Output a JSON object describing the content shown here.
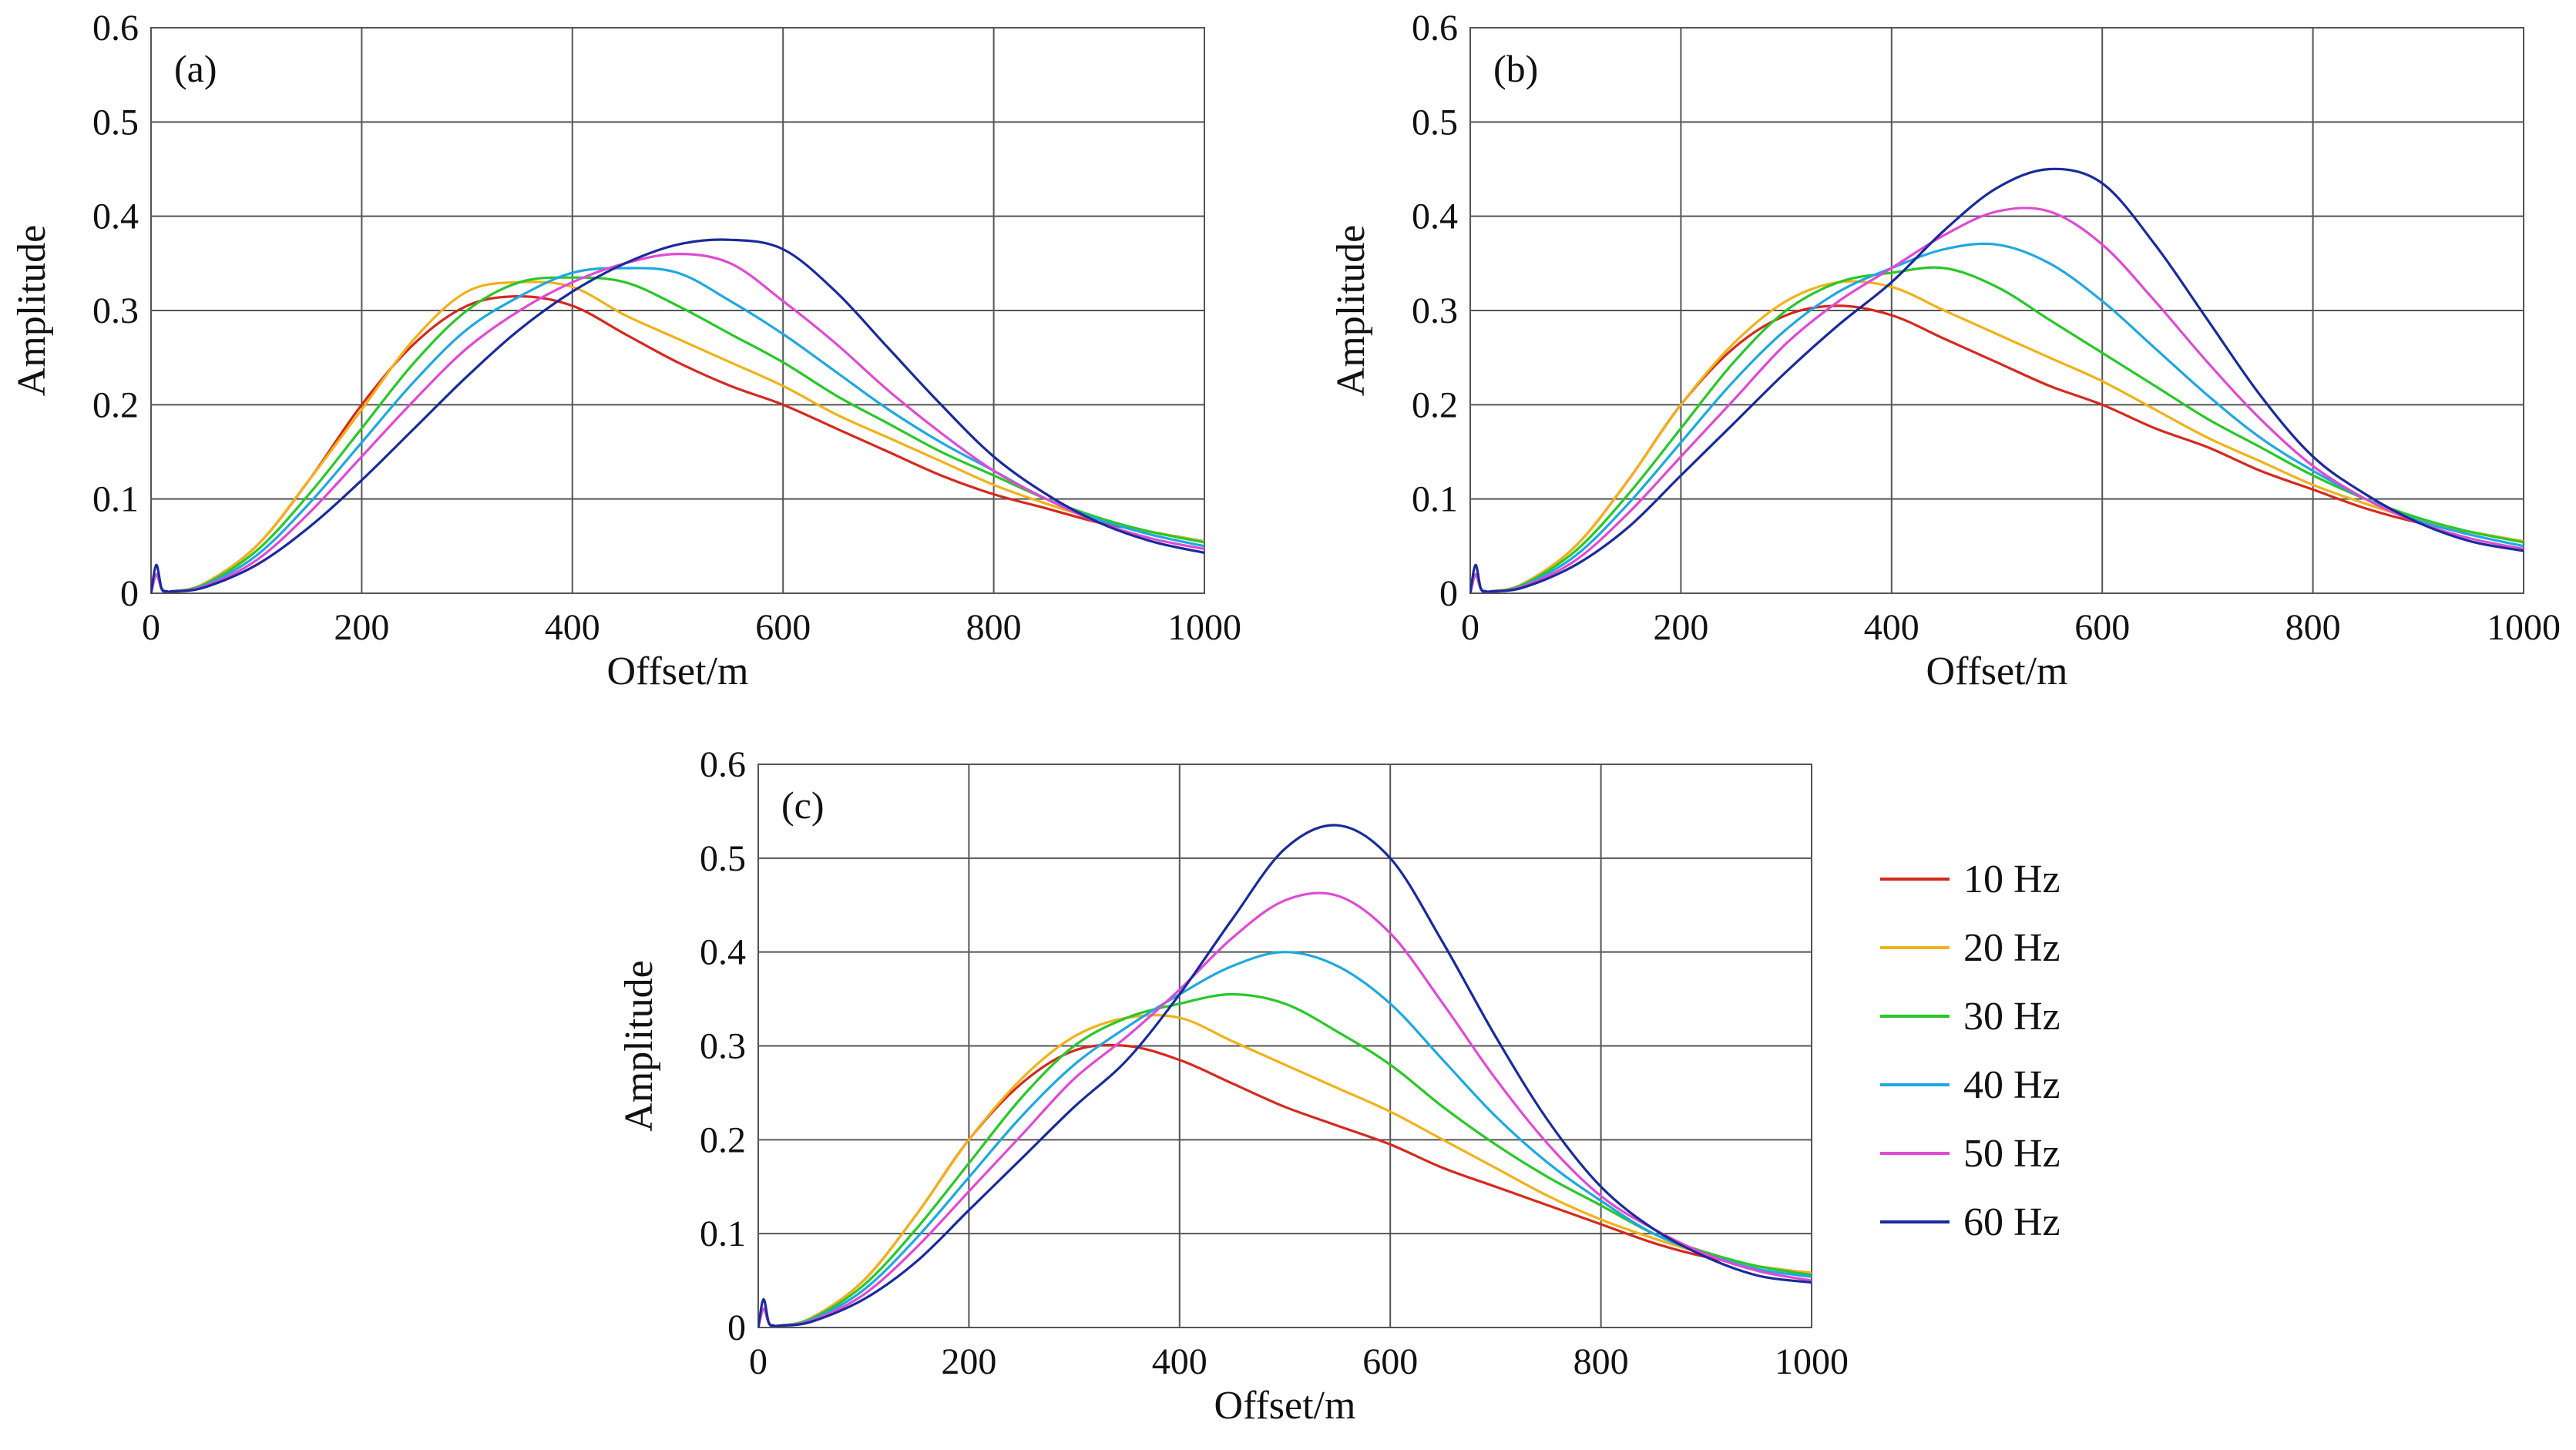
{
  "figure": {
    "legend": [
      {
        "label": "10 Hz",
        "color": "#d42a1e"
      },
      {
        "label": "20 Hz",
        "color": "#f0b21a"
      },
      {
        "label": "30 Hz",
        "color": "#28c828"
      },
      {
        "label": "40 Hz",
        "color": "#1fa8e0"
      },
      {
        "label": "50 Hz",
        "color": "#e04ad2"
      },
      {
        "label": "60 Hz",
        "color": "#1a2a9c"
      }
    ]
  },
  "chart_data": [
    {
      "type": "line",
      "panel": "(a)",
      "xlabel": "Offset/m",
      "ylabel": "Amplitude",
      "xlim": [
        0,
        1000
      ],
      "ylim": [
        0,
        0.6
      ],
      "xticks": [
        "0",
        "200",
        "400",
        "600",
        "800",
        "1000"
      ],
      "yticks": [
        "0",
        "0.1",
        "0.2",
        "0.3",
        "0.4",
        "0.5",
        "0.6"
      ],
      "grid": true,
      "x": [
        0,
        5,
        10,
        15,
        20,
        50,
        100,
        150,
        200,
        250,
        300,
        350,
        400,
        450,
        500,
        550,
        600,
        650,
        700,
        750,
        800,
        850,
        900,
        950,
        1000
      ],
      "series": [
        {
          "name": "10 Hz",
          "values": [
            0,
            0.02,
            0.005,
            0.002,
            0.002,
            0.01,
            0.05,
            0.12,
            0.2,
            0.265,
            0.305,
            0.315,
            0.305,
            0.275,
            0.245,
            0.22,
            0.2,
            0.175,
            0.15,
            0.125,
            0.105,
            0.09,
            0.075,
            0.065,
            0.055
          ]
        },
        {
          "name": "20 Hz",
          "values": [
            0,
            0.02,
            0.005,
            0.002,
            0.002,
            0.01,
            0.05,
            0.12,
            0.195,
            0.27,
            0.32,
            0.33,
            0.325,
            0.295,
            0.27,
            0.245,
            0.22,
            0.19,
            0.165,
            0.14,
            0.115,
            0.095,
            0.078,
            0.065,
            0.055
          ]
        },
        {
          "name": "30 Hz",
          "values": [
            0,
            0.02,
            0.005,
            0.002,
            0.002,
            0.009,
            0.045,
            0.105,
            0.175,
            0.245,
            0.3,
            0.33,
            0.335,
            0.33,
            0.305,
            0.275,
            0.245,
            0.21,
            0.18,
            0.15,
            0.125,
            0.1,
            0.08,
            0.065,
            0.054
          ]
        },
        {
          "name": "40 Hz",
          "values": [
            0,
            0.02,
            0.005,
            0.002,
            0.002,
            0.008,
            0.04,
            0.095,
            0.16,
            0.225,
            0.28,
            0.315,
            0.34,
            0.345,
            0.34,
            0.31,
            0.275,
            0.235,
            0.195,
            0.16,
            0.13,
            0.1,
            0.078,
            0.062,
            0.05
          ]
        },
        {
          "name": "50 Hz",
          "values": [
            0,
            0.02,
            0.005,
            0.002,
            0.002,
            0.007,
            0.035,
            0.085,
            0.145,
            0.205,
            0.26,
            0.3,
            0.33,
            0.35,
            0.36,
            0.35,
            0.31,
            0.265,
            0.215,
            0.17,
            0.13,
            0.1,
            0.075,
            0.058,
            0.047
          ]
        },
        {
          "name": "60 Hz",
          "values": [
            0,
            0.03,
            0.005,
            0.002,
            0.002,
            0.006,
            0.03,
            0.07,
            0.12,
            0.175,
            0.23,
            0.28,
            0.32,
            0.35,
            0.37,
            0.375,
            0.365,
            0.32,
            0.26,
            0.2,
            0.145,
            0.105,
            0.075,
            0.055,
            0.043
          ]
        }
      ]
    },
    {
      "type": "line",
      "panel": "(b)",
      "xlabel": "Offset/m",
      "ylabel": "Amplitude",
      "xlim": [
        0,
        1000
      ],
      "ylim": [
        0,
        0.6
      ],
      "xticks": [
        "0",
        "200",
        "400",
        "600",
        "800",
        "1000"
      ],
      "yticks": [
        "0",
        "0.1",
        "0.2",
        "0.3",
        "0.4",
        "0.5",
        "0.6"
      ],
      "grid": true,
      "x": [
        0,
        5,
        10,
        15,
        20,
        50,
        100,
        150,
        200,
        250,
        300,
        350,
        400,
        450,
        500,
        550,
        600,
        650,
        700,
        750,
        800,
        850,
        900,
        950,
        1000
      ],
      "series": [
        {
          "name": "10 Hz",
          "values": [
            0,
            0.02,
            0.005,
            0.002,
            0.002,
            0.01,
            0.05,
            0.12,
            0.2,
            0.26,
            0.295,
            0.305,
            0.295,
            0.27,
            0.245,
            0.22,
            0.2,
            0.175,
            0.155,
            0.13,
            0.11,
            0.09,
            0.075,
            0.065,
            0.055
          ]
        },
        {
          "name": "20 Hz",
          "values": [
            0,
            0.02,
            0.005,
            0.002,
            0.002,
            0.01,
            0.05,
            0.12,
            0.2,
            0.265,
            0.31,
            0.33,
            0.325,
            0.3,
            0.275,
            0.25,
            0.225,
            0.195,
            0.165,
            0.14,
            0.115,
            0.095,
            0.078,
            0.065,
            0.055
          ]
        },
        {
          "name": "30 Hz",
          "values": [
            0,
            0.02,
            0.005,
            0.002,
            0.002,
            0.009,
            0.045,
            0.105,
            0.175,
            0.245,
            0.3,
            0.33,
            0.34,
            0.345,
            0.325,
            0.29,
            0.255,
            0.22,
            0.185,
            0.155,
            0.125,
            0.1,
            0.08,
            0.065,
            0.054
          ]
        },
        {
          "name": "40 Hz",
          "values": [
            0,
            0.02,
            0.005,
            0.002,
            0.002,
            0.008,
            0.04,
            0.095,
            0.16,
            0.225,
            0.28,
            0.32,
            0.345,
            0.365,
            0.37,
            0.35,
            0.31,
            0.26,
            0.21,
            0.165,
            0.13,
            0.1,
            0.077,
            0.062,
            0.05
          ]
        },
        {
          "name": "50 Hz",
          "values": [
            0,
            0.02,
            0.005,
            0.002,
            0.002,
            0.007,
            0.035,
            0.085,
            0.145,
            0.205,
            0.265,
            0.31,
            0.345,
            0.38,
            0.405,
            0.405,
            0.37,
            0.31,
            0.245,
            0.185,
            0.135,
            0.1,
            0.075,
            0.058,
            0.047
          ]
        },
        {
          "name": "60 Hz",
          "values": [
            0,
            0.03,
            0.005,
            0.002,
            0.002,
            0.006,
            0.03,
            0.07,
            0.125,
            0.18,
            0.235,
            0.285,
            0.33,
            0.385,
            0.43,
            0.45,
            0.435,
            0.37,
            0.29,
            0.21,
            0.145,
            0.105,
            0.075,
            0.055,
            0.045
          ]
        }
      ]
    },
    {
      "type": "line",
      "panel": "(c)",
      "xlabel": "Offset/m",
      "ylabel": "Amplitude",
      "xlim": [
        0,
        1000
      ],
      "ylim": [
        0,
        0.6
      ],
      "xticks": [
        "0",
        "200",
        "400",
        "600",
        "800",
        "1000"
      ],
      "yticks": [
        "0",
        "0.1",
        "0.2",
        "0.3",
        "0.4",
        "0.5",
        "0.6"
      ],
      "grid": true,
      "x": [
        0,
        5,
        10,
        15,
        20,
        50,
        100,
        150,
        200,
        250,
        300,
        350,
        400,
        450,
        500,
        550,
        600,
        650,
        700,
        750,
        800,
        850,
        900,
        950,
        1000
      ],
      "series": [
        {
          "name": "10 Hz",
          "values": [
            0,
            0.02,
            0.005,
            0.002,
            0.002,
            0.01,
            0.05,
            0.12,
            0.2,
            0.26,
            0.295,
            0.3,
            0.285,
            0.26,
            0.235,
            0.215,
            0.195,
            0.17,
            0.15,
            0.13,
            0.11,
            0.09,
            0.075,
            0.065,
            0.058
          ]
        },
        {
          "name": "20 Hz",
          "values": [
            0,
            0.02,
            0.005,
            0.002,
            0.002,
            0.01,
            0.05,
            0.12,
            0.2,
            0.265,
            0.31,
            0.33,
            0.33,
            0.305,
            0.28,
            0.255,
            0.23,
            0.2,
            0.17,
            0.14,
            0.115,
            0.095,
            0.078,
            0.065,
            0.058
          ]
        },
        {
          "name": "30 Hz",
          "values": [
            0,
            0.02,
            0.005,
            0.002,
            0.002,
            0.009,
            0.045,
            0.105,
            0.175,
            0.245,
            0.3,
            0.33,
            0.345,
            0.355,
            0.345,
            0.315,
            0.28,
            0.235,
            0.195,
            0.16,
            0.13,
            0.1,
            0.08,
            0.065,
            0.056
          ]
        },
        {
          "name": "40 Hz",
          "values": [
            0,
            0.02,
            0.005,
            0.002,
            0.002,
            0.008,
            0.04,
            0.095,
            0.16,
            0.225,
            0.28,
            0.32,
            0.355,
            0.385,
            0.4,
            0.385,
            0.345,
            0.285,
            0.225,
            0.175,
            0.135,
            0.1,
            0.078,
            0.062,
            0.054
          ]
        },
        {
          "name": "50 Hz",
          "values": [
            0,
            0.02,
            0.005,
            0.002,
            0.002,
            0.007,
            0.035,
            0.085,
            0.145,
            0.205,
            0.265,
            0.31,
            0.36,
            0.415,
            0.455,
            0.46,
            0.42,
            0.345,
            0.265,
            0.195,
            0.14,
            0.105,
            0.078,
            0.06,
            0.05
          ]
        },
        {
          "name": "60 Hz",
          "values": [
            0,
            0.03,
            0.005,
            0.002,
            0.002,
            0.006,
            0.03,
            0.07,
            0.125,
            0.18,
            0.235,
            0.285,
            0.355,
            0.435,
            0.51,
            0.535,
            0.5,
            0.41,
            0.31,
            0.22,
            0.15,
            0.105,
            0.075,
            0.055,
            0.048
          ]
        }
      ]
    }
  ]
}
